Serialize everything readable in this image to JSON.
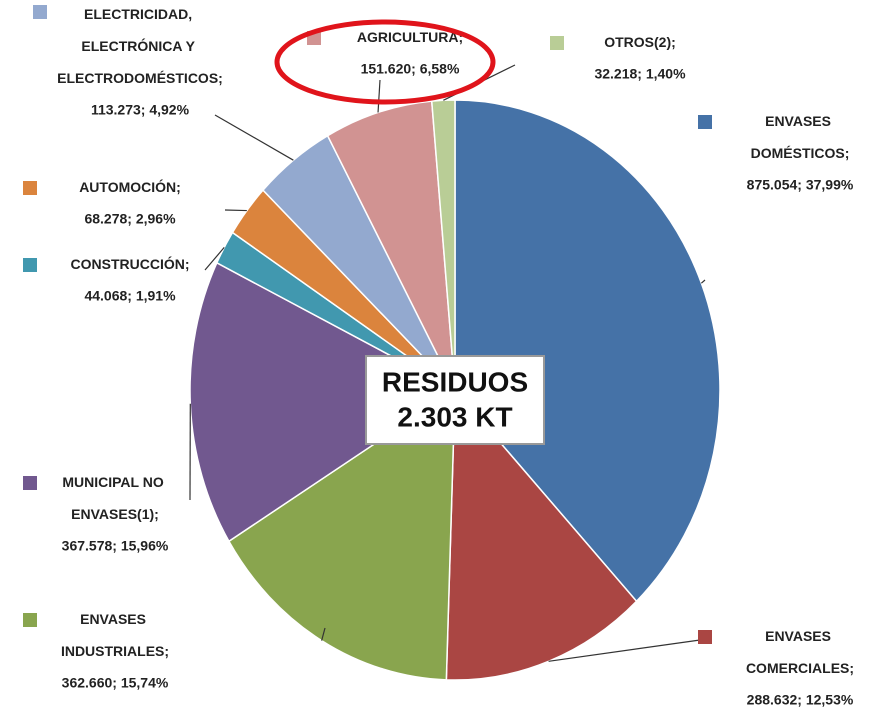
{
  "chart_data": {
    "type": "pie",
    "categories": [
      "ENVASES DOMÉSTICOS;",
      "ENVASES COMERCIALES;",
      "ENVASES INDUSTRIALES;",
      "MUNICIPAL NO ENVASES(1);",
      "CONSTRUCCIÓN;",
      "AUTOMOCIÓN;",
      "ELECTRICIDAD, ELECTRÓNICA Y ELECTRODOMÉSTICOS;",
      "AGRICULTURA;",
      "OTROS(2);"
    ],
    "values": [
      875054,
      288632,
      362660,
      367578,
      44068,
      68278,
      113273,
      151620,
      32218
    ],
    "value_labels": [
      "875.054; 37,99%",
      "288.632; 12,53%",
      "362.660; 15,74%",
      "367.578; 15,96%",
      "44.068; 1,91%",
      "68.278; 2,96%",
      "113.273; 4,92%",
      "151.620; 6,58%",
      "32.218; 1,40%"
    ],
    "colors": [
      "#4572a7",
      "#aa4643",
      "#89a54e",
      "#71588f",
      "#4198af",
      "#db843d",
      "#93a9cf",
      "#d19392",
      "#b9cd96"
    ],
    "center_text": [
      "RESIDUOS",
      "2.303 KT"
    ]
  }
}
